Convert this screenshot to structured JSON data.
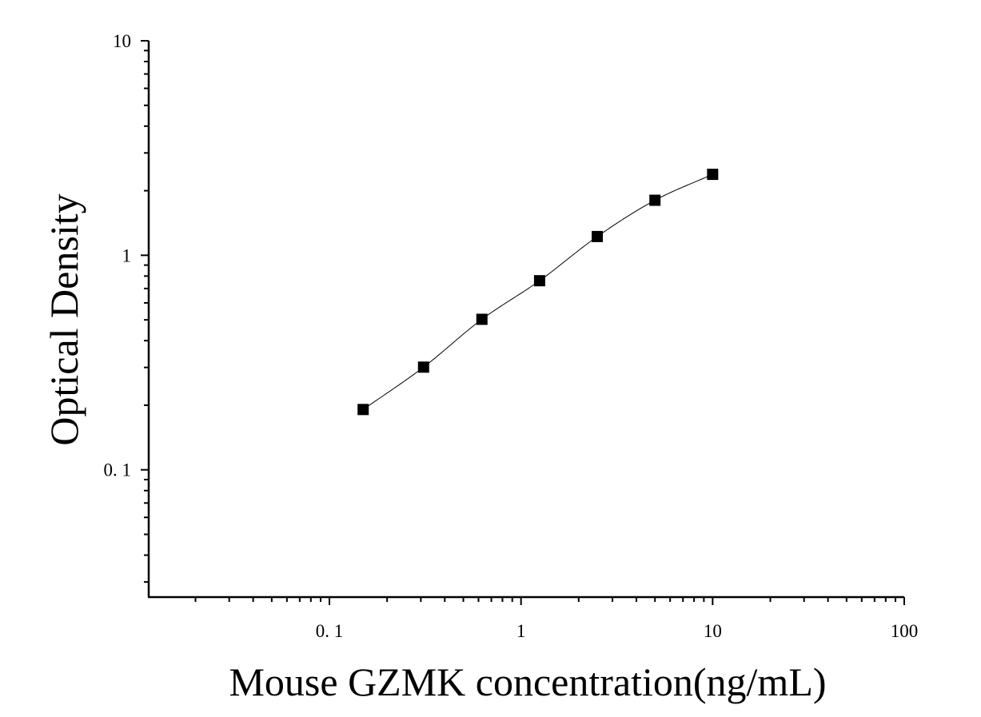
{
  "chart_data": {
    "type": "scatter",
    "title": "",
    "xlabel": "Mouse GZMK concentration(ng/mL)",
    "ylabel": "Optical Density",
    "xscale": "log",
    "yscale": "log",
    "xlim": [
      0.0114,
      100
    ],
    "ylim": [
      0.0255,
      10
    ],
    "x_ticks": [
      {
        "value": 0.1,
        "label": "0. 1"
      },
      {
        "value": 1,
        "label": "1"
      },
      {
        "value": 10,
        "label": "10"
      },
      {
        "value": 100,
        "label": "100"
      }
    ],
    "y_ticks": [
      {
        "value": 0.1,
        "label": "0. 1"
      },
      {
        "value": 1,
        "label": "1"
      },
      {
        "value": 10,
        "label": "10"
      }
    ],
    "grid": false,
    "legend": "none",
    "marker": "square",
    "series": [
      {
        "x": [
          0.15,
          0.31,
          0.625,
          1.25,
          2.5,
          5,
          10
        ],
        "y": [
          0.191,
          0.301,
          0.503,
          0.761,
          1.223,
          1.805,
          2.384
        ],
        "fit_curve": true
      }
    ],
    "colors": {
      "marker": "#000000",
      "line": "#000000",
      "axis": "#000000"
    }
  }
}
